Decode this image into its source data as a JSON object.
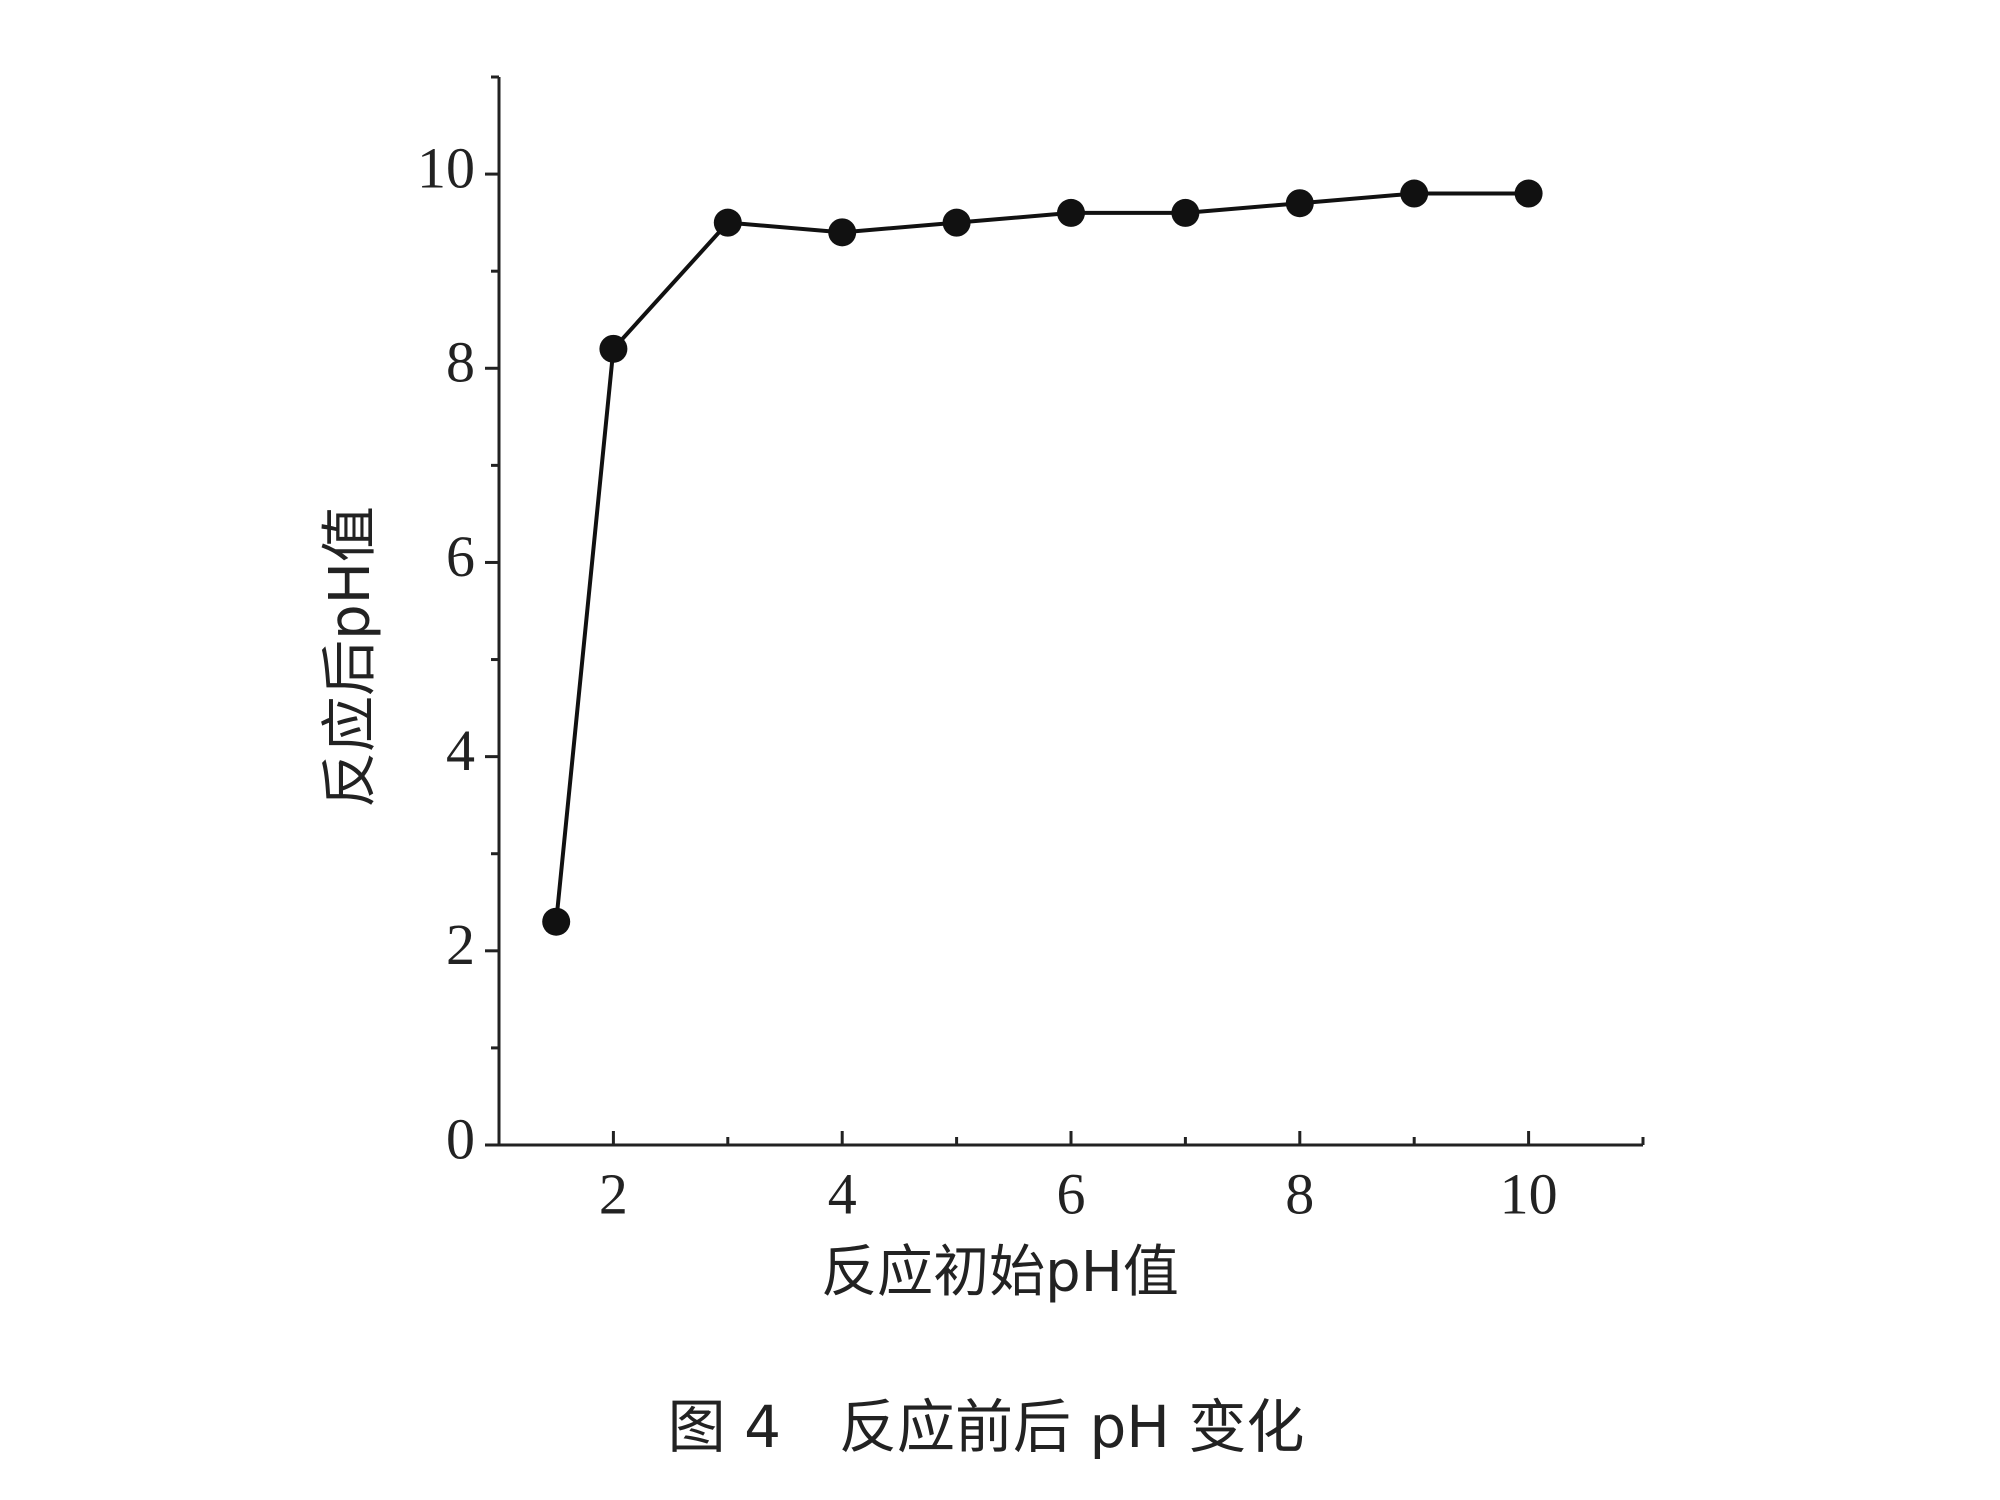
{
  "chart_data": {
    "type": "line",
    "title": "图 4　反应前后 pH 变化",
    "xlabel": "反应初始pH值",
    "ylabel": "反应后pH值",
    "x": [
      1.5,
      2,
      3,
      4,
      5,
      6,
      7,
      8,
      9,
      10
    ],
    "series": [
      {
        "color": "#111111",
        "values": [
          2.3,
          8.2,
          9.5,
          9.4,
          9.5,
          9.6,
          9.6,
          9.7,
          9.8,
          9.8
        ]
      }
    ],
    "xlim": [
      1,
      11
    ],
    "ylim": [
      0,
      11
    ],
    "xticks": [
      2,
      4,
      6,
      8,
      10
    ],
    "yticks": [
      0,
      2,
      4,
      6,
      8,
      10
    ],
    "x_minor_ticks": [
      1,
      3,
      5,
      7,
      9,
      11
    ],
    "y_minor_ticks": [
      1,
      3,
      5,
      7,
      9,
      11
    ],
    "marker": "circle"
  }
}
